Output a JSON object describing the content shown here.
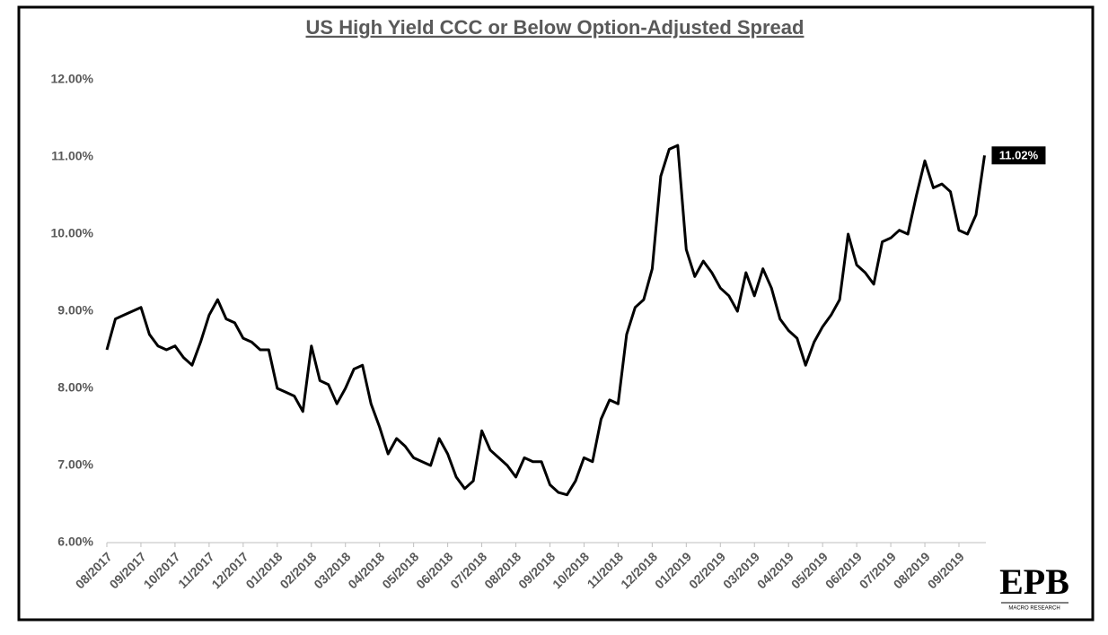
{
  "chart_data": {
    "type": "line",
    "title": "US High Yield CCC or Below Option-Adjusted Spread",
    "x": [
      "08/2017",
      "08/2017",
      "08/2017",
      "08/2017",
      "09/2017",
      "09/2017",
      "09/2017",
      "09/2017",
      "10/2017",
      "10/2017",
      "10/2017",
      "10/2017",
      "11/2017",
      "11/2017",
      "11/2017",
      "11/2017",
      "12/2017",
      "12/2017",
      "12/2017",
      "12/2017",
      "01/2018",
      "01/2018",
      "01/2018",
      "01/2018",
      "02/2018",
      "02/2018",
      "02/2018",
      "02/2018",
      "03/2018",
      "03/2018",
      "03/2018",
      "03/2018",
      "04/2018",
      "04/2018",
      "04/2018",
      "04/2018",
      "05/2018",
      "05/2018",
      "05/2018",
      "05/2018",
      "06/2018",
      "06/2018",
      "06/2018",
      "06/2018",
      "07/2018",
      "07/2018",
      "07/2018",
      "07/2018",
      "08/2018",
      "08/2018",
      "08/2018",
      "08/2018",
      "09/2018",
      "09/2018",
      "09/2018",
      "09/2018",
      "10/2018",
      "10/2018",
      "10/2018",
      "10/2018",
      "11/2018",
      "11/2018",
      "11/2018",
      "11/2018",
      "12/2018",
      "12/2018",
      "12/2018",
      "12/2018",
      "01/2019",
      "01/2019",
      "01/2019",
      "01/2019",
      "02/2019",
      "02/2019",
      "02/2019",
      "02/2019",
      "03/2019",
      "03/2019",
      "03/2019",
      "03/2019",
      "04/2019",
      "04/2019",
      "04/2019",
      "04/2019",
      "05/2019",
      "05/2019",
      "05/2019",
      "05/2019",
      "06/2019",
      "06/2019",
      "06/2019",
      "06/2019",
      "07/2019",
      "07/2019",
      "07/2019",
      "07/2019",
      "08/2019",
      "08/2019",
      "08/2019",
      "08/2019",
      "09/2019",
      "09/2019",
      "09/2019",
      "09/2019"
    ],
    "series": [
      {
        "name": "US High Yield CCC or Below OAS",
        "color": "#000000",
        "values": [
          8.5,
          8.9,
          8.95,
          9.0,
          9.05,
          8.7,
          8.55,
          8.5,
          8.55,
          8.4,
          8.3,
          8.6,
          8.95,
          9.15,
          8.9,
          8.85,
          8.65,
          8.6,
          8.5,
          8.5,
          8.0,
          7.95,
          7.9,
          7.7,
          8.55,
          8.1,
          8.05,
          7.8,
          8.0,
          8.25,
          8.3,
          7.8,
          7.5,
          7.15,
          7.35,
          7.25,
          7.1,
          7.05,
          7.0,
          7.35,
          7.15,
          6.85,
          6.7,
          6.8,
          7.45,
          7.2,
          7.1,
          7.0,
          6.85,
          7.1,
          7.05,
          7.05,
          6.75,
          6.65,
          6.62,
          6.8,
          7.1,
          7.05,
          7.6,
          7.85,
          7.8,
          8.7,
          9.05,
          9.15,
          9.55,
          10.75,
          11.1,
          11.15,
          9.8,
          9.45,
          9.65,
          9.5,
          9.3,
          9.2,
          9.0,
          9.5,
          9.2,
          9.55,
          9.3,
          8.9,
          8.75,
          8.65,
          8.3,
          8.6,
          8.8,
          8.95,
          9.15,
          10.0,
          9.6,
          9.5,
          9.35,
          9.9,
          9.95,
          10.05,
          10.0,
          10.5,
          10.95,
          10.6,
          10.65,
          10.55,
          10.05,
          10.0,
          10.25,
          11.02
        ]
      }
    ],
    "annotation": "11.02%",
    "ylim": [
      6,
      12
    ],
    "yticks": [
      {
        "value": 6,
        "label": "6.00%"
      },
      {
        "value": 7,
        "label": "7.00%"
      },
      {
        "value": 8,
        "label": "8.00%"
      },
      {
        "value": 9,
        "label": "9.00%"
      },
      {
        "value": 10,
        "label": "10.00%"
      },
      {
        "value": 11,
        "label": "11.00%"
      },
      {
        "value": 12,
        "label": "12.00%"
      }
    ],
    "grid": false,
    "logo": {
      "name": "EPB",
      "tagline": "MACRO RESEARCH"
    }
  }
}
